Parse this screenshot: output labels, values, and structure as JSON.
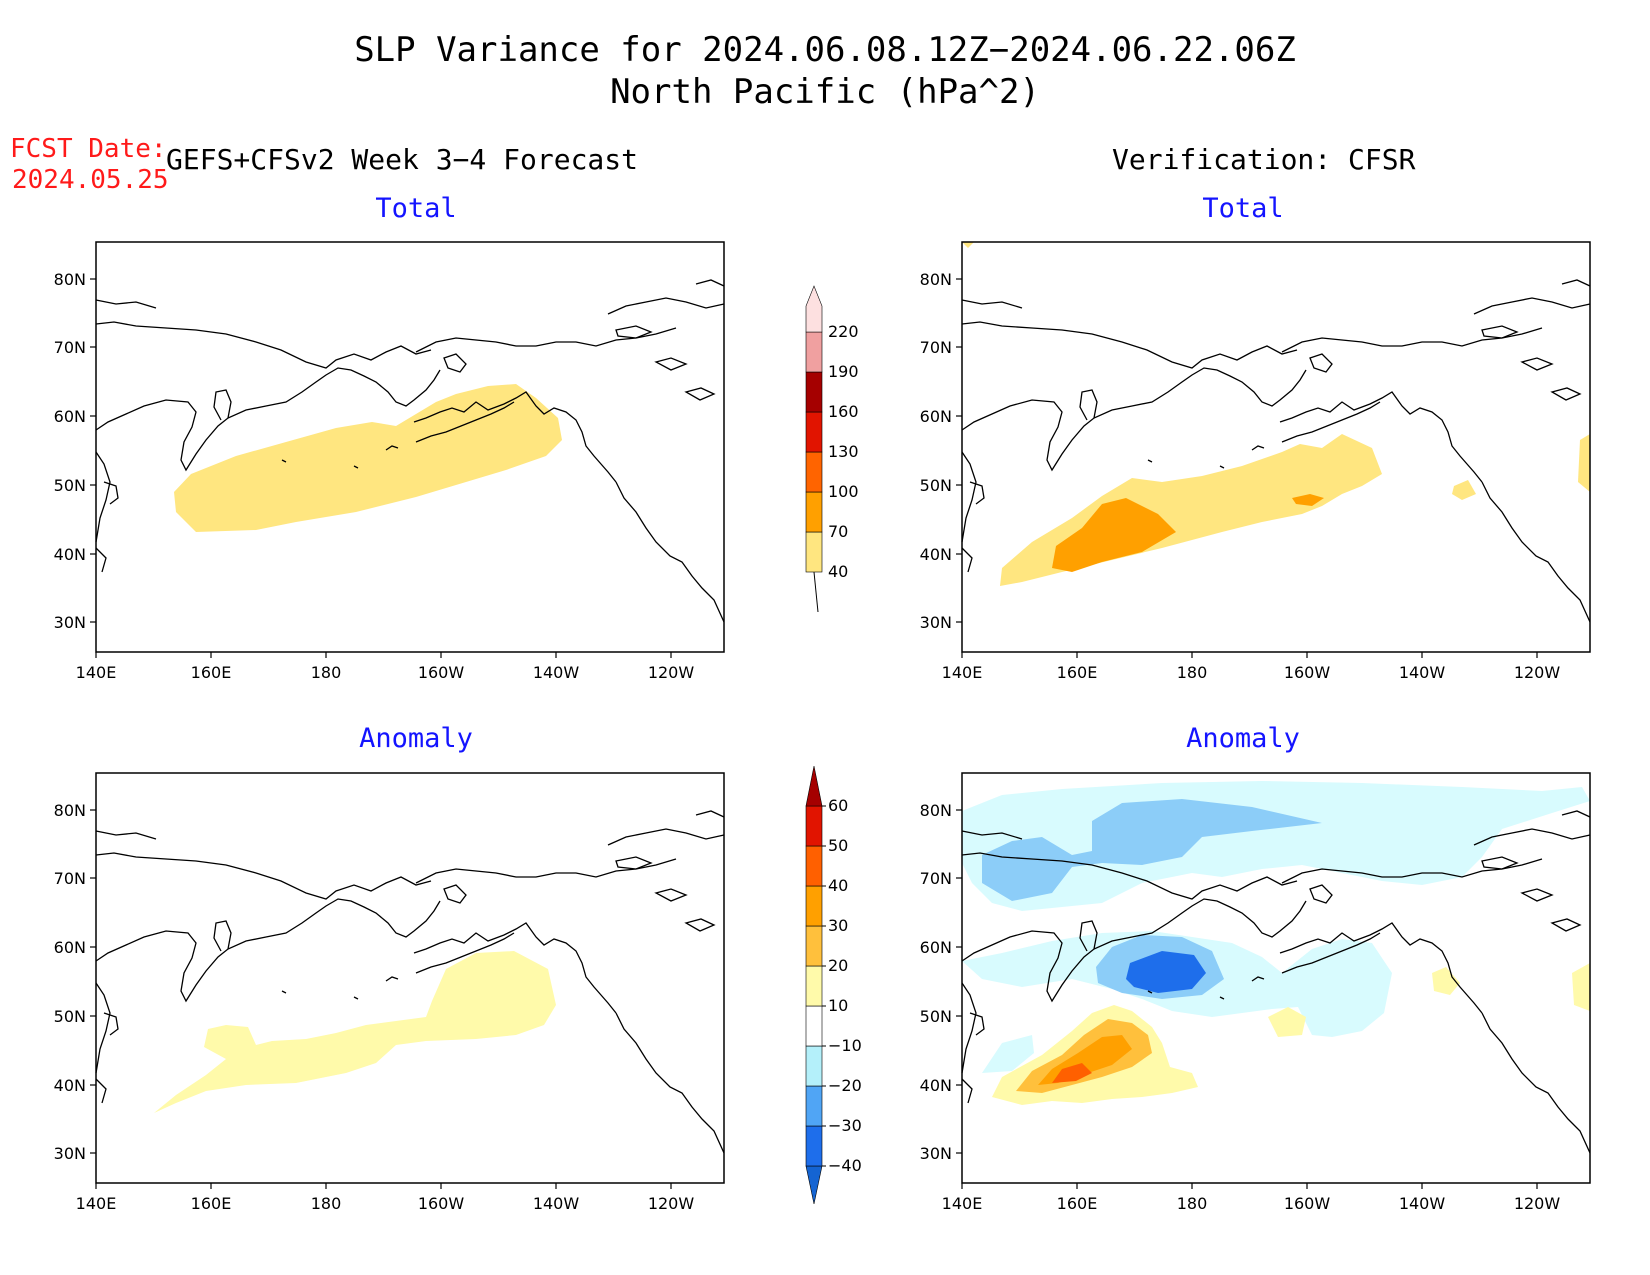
{
  "title": {
    "line1": "SLP Variance for 2024.06.08.12Z−2024.06.22.06Z",
    "line2": "North Pacific (hPa^2)"
  },
  "fcst": {
    "label": "FCST Date:",
    "date": "2024.05.25"
  },
  "columns": {
    "left": "GEFS+CFSv2 Week 3−4 Forecast",
    "right": "Verification: CFSR"
  },
  "panels": {
    "forecast_total": "Total",
    "verification_total": "Total",
    "forecast_anomaly": "Anomaly",
    "verification_anomaly": "Anomaly"
  },
  "axes": {
    "lat_labels": [
      "80N",
      "70N",
      "60N",
      "50N",
      "40N",
      "30N"
    ],
    "lon_labels": [
      "140E",
      "160E",
      "180",
      "160W",
      "140W",
      "120W"
    ]
  },
  "colorbars": {
    "total": {
      "levels": [
        "40",
        "70",
        "100",
        "130",
        "160",
        "190",
        "220"
      ],
      "colors": [
        "#ffe680",
        "#ffa000",
        "#ff6400",
        "#e11400",
        "#a50000",
        "#f0a0a0",
        "#fde0e0"
      ]
    },
    "anomaly": {
      "levels": [
        "−40",
        "−30",
        "−20",
        "−10",
        "10",
        "20",
        "30",
        "40",
        "50",
        "60"
      ],
      "colors": [
        "#1464d2",
        "#1e6eeb",
        "#50a5f5",
        "#b4f0fa",
        "#ffffff",
        "#fffaaa",
        "#ffc03c",
        "#ffa000",
        "#ff6000",
        "#e11400",
        "#a50000"
      ]
    }
  },
  "colors": {
    "title_blue": "#1414ff",
    "fcst_red": "#ff1a1a"
  }
}
